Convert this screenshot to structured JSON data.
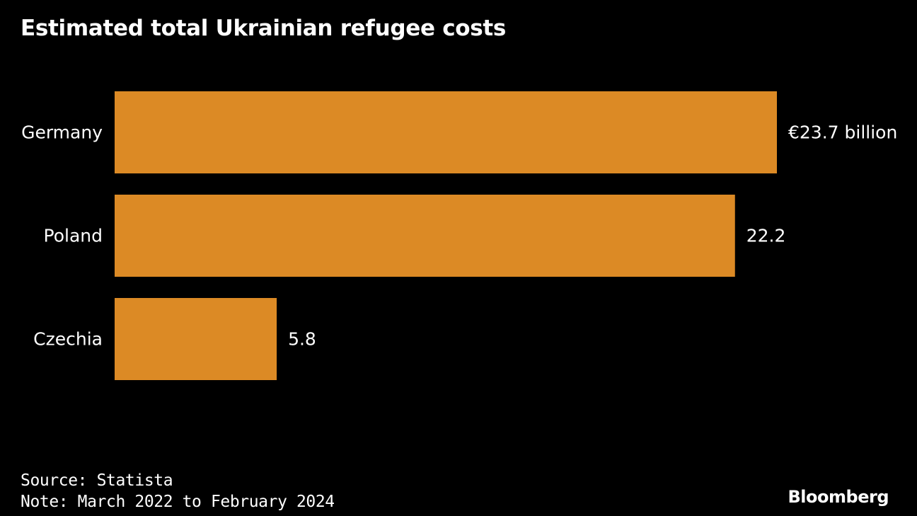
{
  "title": "Estimated total Ukrainian refugee costs",
  "colors": {
    "background": "#000000",
    "bar": "#dc8a25",
    "text": "#ffffff"
  },
  "chart_data": {
    "type": "bar",
    "orientation": "horizontal",
    "title": "Estimated total Ukrainian refugee costs",
    "categories": [
      "Germany",
      "Poland",
      "Czechia"
    ],
    "values": [
      23.7,
      22.2,
      5.8
    ],
    "value_labels": [
      "€23.7 billion",
      "22.2",
      "5.8"
    ],
    "unit": "€ billion",
    "xlim": [
      0,
      23.7
    ],
    "grid": false,
    "legend": "none"
  },
  "footer": {
    "source": "Source: Statista",
    "note": "Note: March 2022 to February 2024"
  },
  "brand": "Bloomberg"
}
